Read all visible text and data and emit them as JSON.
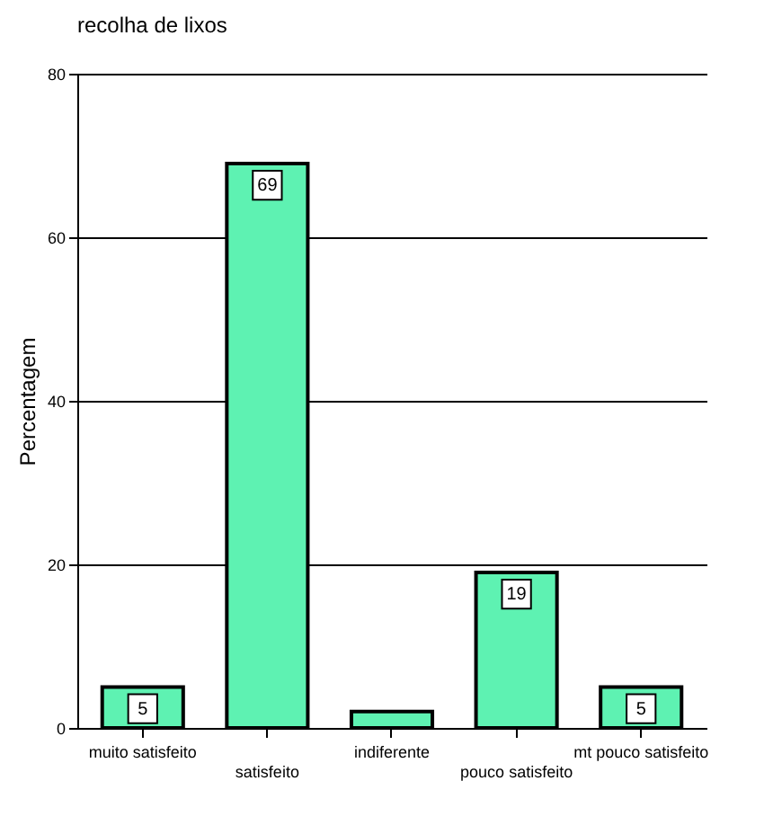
{
  "chart_data": {
    "type": "bar",
    "title": "recolha de lixos",
    "ylabel": "Percentagem",
    "categories": [
      "muito satisfeito",
      "satisfeito",
      "indiferente",
      "pouco satisfeito",
      "mt pouco satisfeito"
    ],
    "values": [
      5,
      69,
      2,
      19,
      5
    ],
    "value_labels": [
      "5",
      "69",
      null,
      "19",
      "5"
    ],
    "color": "#5ef2b2",
    "ylim": [
      0,
      80
    ],
    "yticks": [
      0,
      20,
      40,
      60,
      80
    ],
    "grid": "y"
  }
}
